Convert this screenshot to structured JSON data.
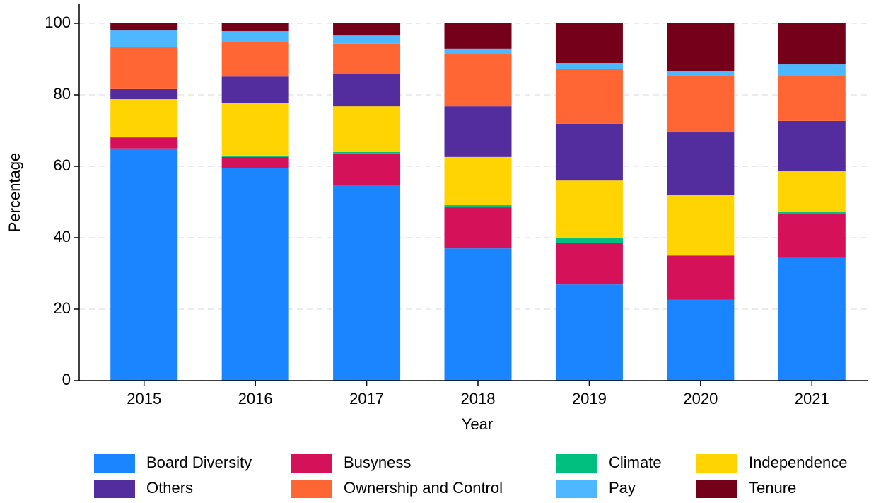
{
  "chart_data": {
    "type": "stacked_bar",
    "xlabel": "Year",
    "ylabel": "Percentage",
    "categories": [
      "2015",
      "2016",
      "2017",
      "2018",
      "2019",
      "2020",
      "2021"
    ],
    "series": [
      {
        "name": "Board Diversity",
        "color": "#1a85ff",
        "values": [
          65.0,
          59.6,
          54.7,
          37.0,
          26.9,
          22.6,
          34.5
        ]
      },
      {
        "name": "Busyness",
        "color": "#d41159",
        "values": [
          3.1,
          3.0,
          8.9,
          11.5,
          11.7,
          12.3,
          12.2
        ]
      },
      {
        "name": "Climate",
        "color": "#00bf7f",
        "values": [
          0,
          0.4,
          0.4,
          0.6,
          1.4,
          0.3,
          0.6
        ]
      },
      {
        "name": "Independence",
        "color": "#ffd400",
        "values": [
          10.7,
          14.8,
          12.8,
          13.5,
          16.0,
          16.7,
          11.3
        ]
      },
      {
        "name": "Others",
        "color": "#532d9e",
        "values": [
          2.8,
          7.3,
          9.1,
          14.2,
          15.9,
          17.6,
          14.1
        ]
      },
      {
        "name": "Ownership and Control",
        "color": "#ff6633",
        "values": [
          11.7,
          9.6,
          8.4,
          14.5,
          15.4,
          15.8,
          12.8
        ]
      },
      {
        "name": "Pay",
        "color": "#4db8ff",
        "values": [
          4.7,
          3.1,
          2.3,
          1.6,
          1.6,
          1.4,
          3.0
        ]
      },
      {
        "name": "Tenure",
        "color": "#74001a",
        "values": [
          2.0,
          2.2,
          3.4,
          7.1,
          11.1,
          13.3,
          11.5
        ]
      }
    ],
    "ylim": [
      0,
      100
    ],
    "yticks": [
      0,
      20,
      40,
      60,
      80,
      100
    ],
    "grid": true,
    "legend": "bottom"
  }
}
